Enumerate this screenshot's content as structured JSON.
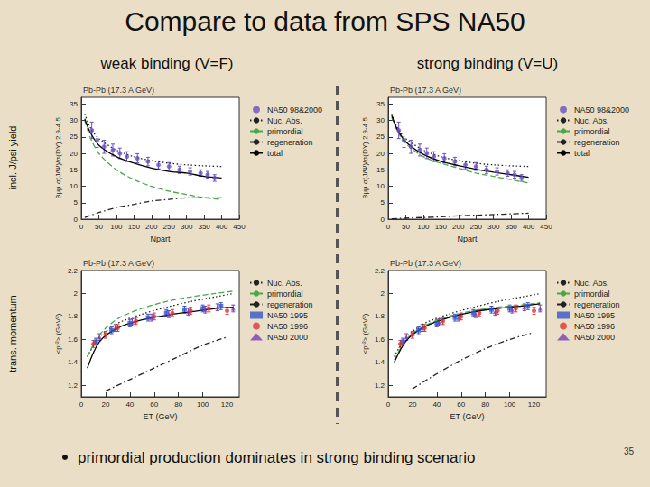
{
  "slide": {
    "title": "Compare to data from SPS NA50",
    "columns": [
      "weak binding (V=F)",
      "strong binding (V=U)"
    ],
    "rows": [
      "incl. J/psi yield",
      "trans. momentum"
    ],
    "bullet": "primordial production dominates in strong binding scenario",
    "page": "35"
  },
  "chart_data": [
    {
      "type": "line",
      "title": "Pb-Pb (17.3 A GeV)",
      "x_label": "Npart",
      "y_label": "Bμμ σ(J/Ψ)/σ(DY) 2.9-4.5",
      "xlim": [
        0,
        450
      ],
      "xticks": [
        0,
        50,
        100,
        150,
        200,
        250,
        300,
        350,
        400,
        450
      ],
      "ylim": [
        0,
        37
      ],
      "yticks": [
        0,
        5,
        10,
        15,
        20,
        25,
        30,
        35
      ],
      "grid": false,
      "legend": "right",
      "series": [
        {
          "name": "NA50 98&2000",
          "type": "scatter",
          "marker": "circle",
          "color": "#6a4fc0",
          "x": [
            30,
            45,
            65,
            90,
            110,
            130,
            160,
            190,
            220,
            250,
            280,
            310,
            340,
            360,
            380
          ],
          "values": [
            27,
            24,
            22,
            21,
            20,
            19,
            18.5,
            17.5,
            16.5,
            16,
            15,
            14.5,
            14,
            13.5,
            12.5
          ],
          "errors": [
            2.5,
            2.2,
            2,
            1.8,
            1.6,
            1.5,
            1.4,
            1.3,
            1.2,
            1.2,
            1.1,
            1.1,
            1,
            1,
            1
          ]
        },
        {
          "name": "Nuc. Abs.",
          "type": "line",
          "line_style": "dotted",
          "color": "#222222",
          "x": [
            10,
            25,
            50,
            100,
            150,
            200,
            250,
            300,
            350,
            400
          ],
          "values": [
            32,
            28,
            24.5,
            21,
            19,
            17.8,
            17,
            16.5,
            16.2,
            16
          ]
        },
        {
          "name": "primordial",
          "type": "line",
          "line_style": "dashed",
          "color": "#4aa84a",
          "x": [
            10,
            25,
            50,
            100,
            150,
            200,
            250,
            300,
            350,
            400
          ],
          "values": [
            30,
            25,
            20,
            15,
            12,
            10,
            8.5,
            7.5,
            6.5,
            6
          ]
        },
        {
          "name": "regeneration",
          "type": "line",
          "line_style": "dashdot",
          "color": "#222222",
          "x": [
            10,
            50,
            100,
            150,
            200,
            250,
            300,
            350,
            400
          ],
          "values": [
            0.5,
            2,
            3.5,
            4.5,
            5.5,
            6,
            6.5,
            6.5,
            6.5
          ]
        },
        {
          "name": "total",
          "type": "line",
          "line_style": "solid",
          "color": "#000000",
          "x": [
            10,
            25,
            50,
            100,
            150,
            200,
            250,
            300,
            350,
            400
          ],
          "values": [
            30.5,
            26.5,
            22.5,
            19,
            17,
            15.5,
            14.5,
            14,
            13,
            12.5
          ]
        }
      ]
    },
    {
      "type": "line",
      "title": "Pb-Pb (17.3 A GeV)",
      "x_label": "Npart",
      "y_label": "Bμμ σ(J/Ψ)/σ(DY) 2.9-4.5",
      "xlim": [
        0,
        450
      ],
      "xticks": [
        0,
        50,
        100,
        150,
        200,
        250,
        300,
        350,
        400,
        450
      ],
      "ylim": [
        0,
        37
      ],
      "yticks": [
        0,
        5,
        10,
        15,
        20,
        25,
        30,
        35
      ],
      "grid": false,
      "legend": "right",
      "series": [
        {
          "name": "NA50 98&2000",
          "type": "scatter",
          "marker": "circle",
          "color": "#6a4fc0",
          "x": [
            30,
            45,
            65,
            90,
            110,
            130,
            160,
            190,
            220,
            250,
            280,
            310,
            340,
            360,
            380
          ],
          "values": [
            27,
            24,
            22,
            21,
            20,
            19,
            18.5,
            17.5,
            16.5,
            16,
            15,
            14.5,
            14,
            13.5,
            12.5
          ],
          "errors": [
            2.5,
            2.2,
            2,
            1.8,
            1.6,
            1.5,
            1.4,
            1.3,
            1.2,
            1.2,
            1.1,
            1.1,
            1,
            1,
            1
          ]
        },
        {
          "name": "Nuc. Abs.",
          "type": "line",
          "line_style": "dotted",
          "color": "#222222",
          "x": [
            10,
            25,
            50,
            100,
            150,
            200,
            250,
            300,
            350,
            400
          ],
          "values": [
            32,
            28,
            24.5,
            21,
            19,
            17.8,
            17,
            16.5,
            16.2,
            16
          ]
        },
        {
          "name": "primordial",
          "type": "line",
          "line_style": "dashed",
          "color": "#4aa84a",
          "x": [
            10,
            25,
            50,
            100,
            150,
            200,
            250,
            300,
            350,
            400
          ],
          "values": [
            31,
            27,
            23,
            19,
            17,
            15.5,
            14,
            13,
            12,
            11
          ]
        },
        {
          "name": "regeneration",
          "type": "line",
          "line_style": "dashdot",
          "color": "#222222",
          "x": [
            10,
            50,
            100,
            150,
            200,
            250,
            300,
            350,
            400
          ],
          "values": [
            0.1,
            0.3,
            0.5,
            0.7,
            1,
            1.2,
            1.4,
            1.6,
            1.8
          ]
        },
        {
          "name": "total",
          "type": "line",
          "line_style": "solid",
          "color": "#000000",
          "x": [
            10,
            25,
            50,
            100,
            150,
            200,
            250,
            300,
            350,
            400
          ],
          "values": [
            31.5,
            27.5,
            23.5,
            19.7,
            17.6,
            16.3,
            15.2,
            14.3,
            13.5,
            12.7
          ]
        }
      ]
    },
    {
      "type": "line",
      "title": "Pb-Pb (17.3 A GeV)",
      "x_label": "ET (GeV)",
      "y_label": "<pt²> (GeV²)",
      "xlim": [
        0,
        130
      ],
      "xticks": [
        0,
        20,
        40,
        60,
        80,
        100,
        120
      ],
      "ylim": [
        1.1,
        2.2
      ],
      "yticks": [
        1.2,
        1.4,
        1.6,
        1.8,
        2,
        2.2
      ],
      "grid": false,
      "legend": "right",
      "series": [
        {
          "name": "Nuc. Abs.",
          "type": "line",
          "line_style": "dotted",
          "color": "#222222",
          "x": [
            5,
            15,
            30,
            50,
            70,
            90,
            110,
            125
          ],
          "values": [
            1.45,
            1.62,
            1.74,
            1.82,
            1.88,
            1.93,
            1.97,
            2.0
          ]
        },
        {
          "name": "primordial",
          "type": "line",
          "line_style": "dashed",
          "color": "#4aa84a",
          "x": [
            5,
            15,
            30,
            50,
            70,
            90,
            110,
            125
          ],
          "values": [
            1.45,
            1.64,
            1.78,
            1.87,
            1.93,
            1.97,
            2.0,
            2.02
          ]
        },
        {
          "name": "regeneration",
          "type": "line",
          "line_style": "dashdot",
          "color": "#222222",
          "x": [
            20,
            40,
            60,
            80,
            100,
            120
          ],
          "values": [
            1.15,
            1.25,
            1.35,
            1.45,
            1.55,
            1.62
          ]
        },
        {
          "type": "line",
          "line_style": "solid",
          "color": "#000000",
          "x": [
            5,
            15,
            30,
            50,
            70,
            90,
            110,
            125
          ],
          "values": [
            1.35,
            1.58,
            1.7,
            1.77,
            1.81,
            1.84,
            1.87,
            1.88
          ]
        },
        {
          "name": "NA50 1995",
          "type": "scatter",
          "marker": "square",
          "color": "#3355cc",
          "x": [
            12,
            25,
            40,
            55,
            70,
            85,
            100,
            115
          ],
          "values": [
            1.58,
            1.68,
            1.74,
            1.79,
            1.83,
            1.86,
            1.87,
            1.89
          ],
          "errors": [
            0.03,
            0.03,
            0.03,
            0.03,
            0.03,
            0.03,
            0.03,
            0.03
          ]
        },
        {
          "name": "NA50 1996",
          "type": "scatter",
          "marker": "circle",
          "color": "#dd3333",
          "x": [
            10,
            20,
            30,
            45,
            60,
            75,
            90,
            105,
            120
          ],
          "values": [
            1.56,
            1.64,
            1.7,
            1.76,
            1.8,
            1.83,
            1.85,
            1.87,
            1.85
          ],
          "errors": [
            0.03,
            0.03,
            0.03,
            0.03,
            0.03,
            0.03,
            0.03,
            0.03,
            0.03
          ]
        },
        {
          "name": "NA50 2000",
          "type": "scatter",
          "marker": "triangle",
          "color": "#7a3fb0",
          "x": [
            15,
            28,
            42,
            58,
            72,
            88,
            102,
            112,
            125
          ],
          "values": [
            1.62,
            1.7,
            1.75,
            1.79,
            1.82,
            1.84,
            1.86,
            1.88,
            1.87
          ],
          "errors": [
            0.03,
            0.03,
            0.03,
            0.03,
            0.03,
            0.03,
            0.03,
            0.03,
            0.03
          ]
        }
      ]
    },
    {
      "type": "line",
      "title": "Pb-Pb (17.3 A GeV)",
      "x_label": "ET (GeV)",
      "y_label": "<pt²> (GeV²)",
      "xlim": [
        0,
        130
      ],
      "xticks": [
        0,
        20,
        40,
        60,
        80,
        100,
        120
      ],
      "ylim": [
        1.1,
        2.2
      ],
      "yticks": [
        1.2,
        1.4,
        1.6,
        1.8,
        2,
        2.2
      ],
      "grid": false,
      "legend": "right",
      "series": [
        {
          "name": "Nuc. Abs.",
          "type": "line",
          "line_style": "dotted",
          "color": "#222222",
          "x": [
            5,
            15,
            30,
            50,
            70,
            90,
            110,
            125
          ],
          "values": [
            1.45,
            1.62,
            1.74,
            1.82,
            1.88,
            1.93,
            1.97,
            2.0
          ]
        },
        {
          "name": "primordial",
          "type": "line",
          "line_style": "dashed",
          "color": "#4aa84a",
          "x": [
            5,
            15,
            30,
            50,
            70,
            90,
            110,
            125
          ],
          "values": [
            1.42,
            1.6,
            1.72,
            1.8,
            1.85,
            1.88,
            1.9,
            1.92
          ]
        },
        {
          "name": "regeneration",
          "type": "line",
          "line_style": "dashdot",
          "color": "#222222",
          "x": [
            20,
            40,
            60,
            80,
            100,
            120
          ],
          "values": [
            1.17,
            1.3,
            1.42,
            1.52,
            1.6,
            1.66
          ]
        },
        {
          "type": "line",
          "line_style": "solid",
          "color": "#000000",
          "x": [
            5,
            15,
            30,
            50,
            70,
            90,
            110,
            125
          ],
          "values": [
            1.4,
            1.59,
            1.71,
            1.79,
            1.84,
            1.87,
            1.89,
            1.91
          ]
        },
        {
          "name": "NA50 1995",
          "type": "scatter",
          "marker": "square",
          "color": "#3355cc",
          "x": [
            12,
            25,
            40,
            55,
            70,
            85,
            100,
            115
          ],
          "values": [
            1.58,
            1.68,
            1.74,
            1.79,
            1.83,
            1.86,
            1.87,
            1.89
          ],
          "errors": [
            0.03,
            0.03,
            0.03,
            0.03,
            0.03,
            0.03,
            0.03,
            0.03
          ]
        },
        {
          "name": "NA50 1996",
          "type": "scatter",
          "marker": "circle",
          "color": "#dd3333",
          "x": [
            10,
            20,
            30,
            45,
            60,
            75,
            90,
            105,
            120
          ],
          "values": [
            1.56,
            1.64,
            1.7,
            1.76,
            1.8,
            1.83,
            1.85,
            1.87,
            1.85
          ],
          "errors": [
            0.03,
            0.03,
            0.03,
            0.03,
            0.03,
            0.03,
            0.03,
            0.03,
            0.03
          ]
        },
        {
          "name": "NA50 2000",
          "type": "scatter",
          "marker": "triangle",
          "color": "#7a3fb0",
          "x": [
            15,
            28,
            42,
            58,
            72,
            88,
            102,
            112,
            125
          ],
          "values": [
            1.62,
            1.7,
            1.75,
            1.79,
            1.82,
            1.84,
            1.86,
            1.88,
            1.87
          ],
          "errors": [
            0.03,
            0.03,
            0.03,
            0.03,
            0.03,
            0.03,
            0.03,
            0.03,
            0.03
          ]
        }
      ]
    }
  ]
}
